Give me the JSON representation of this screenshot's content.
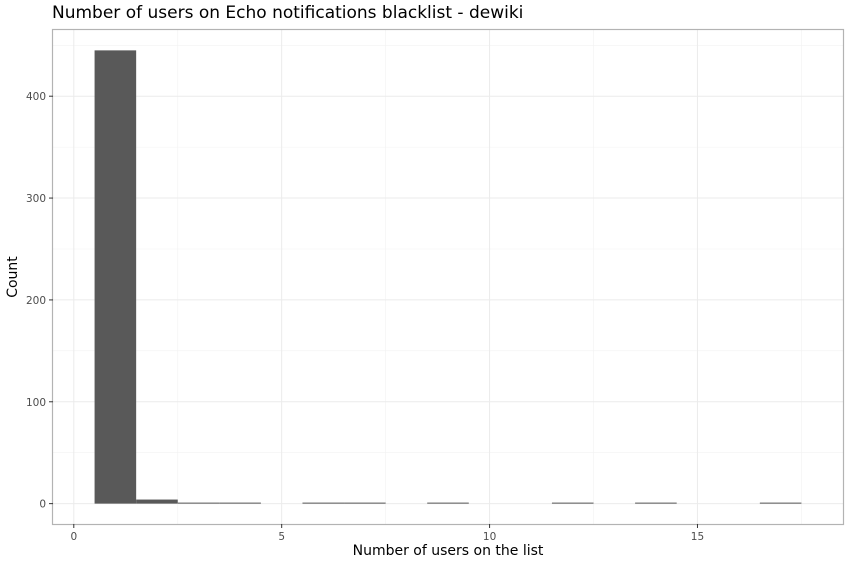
{
  "chart_data": {
    "type": "bar",
    "title": "Number of users on Echo notifications blacklist - dewiki",
    "xlabel": "Number of users on the list",
    "ylabel": "Count",
    "xlim": [
      -0.5,
      18.5
    ],
    "ylim": [
      -20,
      465
    ],
    "x_ticks": [
      0,
      5,
      10,
      15
    ],
    "y_ticks": [
      0,
      100,
      200,
      300,
      400
    ],
    "bin_width": 1,
    "bins": [
      {
        "x": 1,
        "count": 445
      },
      {
        "x": 2,
        "count": 4
      },
      {
        "x": 3,
        "count": 1
      },
      {
        "x": 4,
        "count": 1
      },
      {
        "x": 6,
        "count": 1
      },
      {
        "x": 7,
        "count": 1
      },
      {
        "x": 9,
        "count": 1
      },
      {
        "x": 12,
        "count": 1
      },
      {
        "x": 14,
        "count": 1
      },
      {
        "x": 17,
        "count": 1
      }
    ],
    "grid": true,
    "bar_color": "#595959"
  }
}
